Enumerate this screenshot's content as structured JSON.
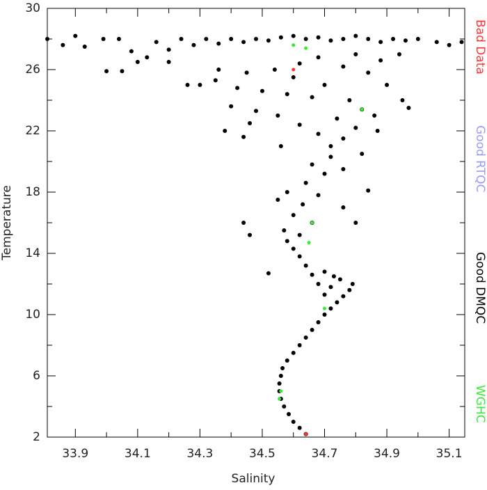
{
  "chart_data": {
    "type": "scatter",
    "xlabel": "Salinity",
    "ylabel": "Temperature",
    "xlim": [
      33.81,
      35.15
    ],
    "ylim": [
      2,
      30
    ],
    "xticks": [
      33.9,
      34.1,
      34.3,
      34.5,
      34.7,
      34.9,
      35.1
    ],
    "xminor": [
      34.0,
      34.2,
      34.4,
      34.6,
      34.8,
      35.0
    ],
    "yticks": [
      2,
      6,
      10,
      14,
      18,
      22,
      26,
      30
    ],
    "yminor": [
      4,
      8,
      12,
      16,
      20,
      24,
      28
    ],
    "legend": "right",
    "series": [
      {
        "name": "Bad Data",
        "color": "#ff3333",
        "x": [
          34.64,
          34.6
        ],
        "y": [
          2.2,
          26.0
        ]
      },
      {
        "name": "Good RTQC",
        "color": "#9999ff",
        "x": [],
        "y": []
      },
      {
        "name": "Good DMQC",
        "color": "#000000",
        "x": [
          34.64,
          34.62,
          34.6,
          34.585,
          34.57,
          34.56,
          34.555,
          34.555,
          34.56,
          34.565,
          34.58,
          34.6,
          34.62,
          34.64,
          34.66,
          34.68,
          34.7,
          34.72,
          34.74,
          34.76,
          34.78,
          34.79,
          34.75,
          34.72,
          34.7,
          34.68,
          34.66,
          34.7,
          34.73,
          34.64,
          34.62,
          34.6,
          34.58,
          34.57,
          34.62,
          34.66,
          34.6,
          34.63,
          34.68,
          34.58,
          34.64,
          34.7,
          34.66,
          34.72,
          34.46,
          34.44,
          34.52,
          34.8,
          34.84,
          34.76,
          34.55,
          34.72,
          34.76,
          34.68,
          34.8,
          34.62,
          34.74,
          34.55,
          34.48,
          34.4,
          34.82,
          34.86,
          34.78,
          34.66,
          34.58,
          34.5,
          34.42,
          34.3,
          34.26,
          34.35,
          34.6,
          34.7,
          34.9,
          34.95,
          34.97,
          34.84,
          34.76,
          34.62,
          34.54,
          34.45,
          34.36,
          34.68,
          34.8,
          34.88,
          34.94,
          34.46,
          34.38,
          34.44,
          34.56,
          34.87,
          34.82,
          34.76,
          33.81,
          33.86,
          33.9,
          33.93,
          33.99,
          34.04,
          34.08,
          34.13,
          34.16,
          34.2,
          34.24,
          34.28,
          34.32,
          34.36,
          34.4,
          34.44,
          34.48,
          34.52,
          34.56,
          34.6,
          34.64,
          34.68,
          34.72,
          34.76,
          34.8,
          34.84,
          34.88,
          34.92,
          34.96,
          35.0,
          35.06,
          35.1,
          35.14,
          34.0,
          34.05,
          34.2,
          34.1
        ],
        "y": [
          2.2,
          2.6,
          3.0,
          3.5,
          4.0,
          4.5,
          5.0,
          5.5,
          6.0,
          6.5,
          7.0,
          7.5,
          8.0,
          8.5,
          9.0,
          9.5,
          10.0,
          10.4,
          10.8,
          11.2,
          11.6,
          12.0,
          12.3,
          11.8,
          11.3,
          12.0,
          12.6,
          12.8,
          12.5,
          13.2,
          13.8,
          14.3,
          14.8,
          15.5,
          15.2,
          16.0,
          16.5,
          17.2,
          17.8,
          18.0,
          18.6,
          19.2,
          19.8,
          20.3,
          15.2,
          16.0,
          12.7,
          16.0,
          18.1,
          17.0,
          17.5,
          21.0,
          21.5,
          21.8,
          22.2,
          22.4,
          22.8,
          23.0,
          23.3,
          23.6,
          23.4,
          23.0,
          24.0,
          24.2,
          24.4,
          24.6,
          24.8,
          25.0,
          25.0,
          25.3,
          25.5,
          25.0,
          25.0,
          24.0,
          23.5,
          25.8,
          26.2,
          26.4,
          26.0,
          25.8,
          26.0,
          26.8,
          27.0,
          26.6,
          27.0,
          22.5,
          22.0,
          21.6,
          21.0,
          22.0,
          20.5,
          19.5,
          28.0,
          27.6,
          28.2,
          27.5,
          28.0,
          28.0,
          27.2,
          26.8,
          27.8,
          27.3,
          28.0,
          27.6,
          28.0,
          27.7,
          28.0,
          27.8,
          28.0,
          27.9,
          28.1,
          28.2,
          28.0,
          28.1,
          27.9,
          28.0,
          28.2,
          28.0,
          27.8,
          28.0,
          27.9,
          28.0,
          27.8,
          27.6,
          27.8,
          25.9,
          25.9,
          26.5,
          26.5
        ]
      },
      {
        "name": "WGHC",
        "color": "#33ee33",
        "x": [
          34.56,
          34.555,
          34.6,
          34.64,
          34.82,
          34.66,
          34.65,
          34.7
        ],
        "y": [
          5.0,
          4.5,
          27.6,
          27.4,
          23.4,
          16.0,
          14.7,
          10.4
        ]
      }
    ]
  }
}
